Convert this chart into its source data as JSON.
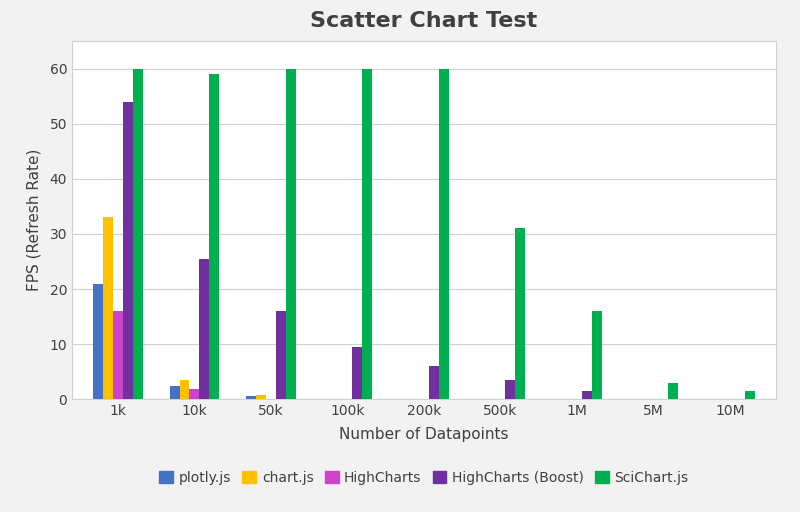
{
  "title": "Scatter Chart Test",
  "xlabel": "Number of Datapoints",
  "ylabel": "FPS (Refresh Rate)",
  "categories": [
    "1k",
    "10k",
    "50k",
    "100k",
    "200k",
    "500k",
    "1M",
    "5M",
    "10M"
  ],
  "series": {
    "plotly.js": [
      21,
      2.5,
      0.7,
      0,
      0,
      0,
      0,
      0,
      0
    ],
    "chart.js": [
      33,
      3.5,
      0.8,
      0,
      0,
      0,
      0,
      0,
      0
    ],
    "HighCharts": [
      16,
      1.8,
      0,
      0,
      0,
      0,
      0,
      0,
      0
    ],
    "HighCharts (Boost)": [
      54,
      25.5,
      16,
      9.5,
      6,
      3.5,
      1.5,
      0,
      0
    ],
    "SciChart.js": [
      60,
      59,
      60,
      60,
      60,
      31,
      16,
      3,
      1.5
    ]
  },
  "colors": {
    "plotly.js": "#4472C4",
    "chart.js": "#FFC000",
    "HighCharts": "#CC44CC",
    "HighCharts (Boost)": "#7030A0",
    "SciChart.js": "#00B050"
  },
  "ylim": [
    0,
    65
  ],
  "yticks": [
    0,
    10,
    20,
    30,
    40,
    50,
    60
  ],
  "title_fontsize": 16,
  "label_fontsize": 11,
  "tick_fontsize": 10,
  "legend_fontsize": 10,
  "figure_facecolor": "#F2F2F2",
  "plot_facecolor": "#FFFFFF",
  "grid_color": "#D0D0D0",
  "text_color": "#404040",
  "bar_width": 0.13
}
